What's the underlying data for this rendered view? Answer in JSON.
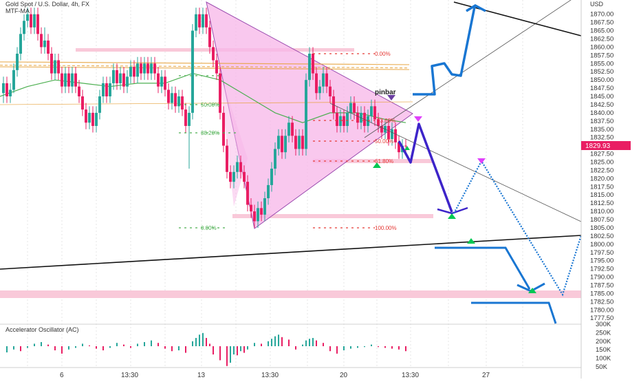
{
  "header": {
    "symbol_line": "Gold Spot / U.S. Dollar, 4h, FX",
    "indicator": "MTF-MA"
  },
  "price_axis": {
    "unit": "USD",
    "ticks": [
      "1870.00",
      "1867.50",
      "1865.00",
      "1862.50",
      "1860.00",
      "1857.50",
      "1855.00",
      "1852.50",
      "1850.00",
      "1847.50",
      "1845.00",
      "1842.50",
      "1840.00",
      "1837.50",
      "1835.00",
      "1832.50",
      "1830.00",
      "1827.50",
      "1825.00",
      "1822.50",
      "1820.00",
      "1817.50",
      "1815.00",
      "1812.50",
      "1810.00",
      "1807.50",
      "1805.00",
      "1802.50",
      "1800.00",
      "1797.50",
      "1795.00",
      "1792.50",
      "1790.00",
      "1787.50",
      "1785.00",
      "1782.50",
      "1780.00",
      "1777.50"
    ],
    "current_price": "1829.93",
    "current_color": "#e91e63"
  },
  "oscillator": {
    "title": "Accelerator Oscillator (AC)",
    "ticks": [
      "300K",
      "250K",
      "200K",
      "150K",
      "100K",
      "50K"
    ]
  },
  "time_axis": {
    "labels": [
      "6",
      "13:30",
      "13",
      "13:30",
      "20",
      "13:30",
      "27"
    ]
  },
  "annotations": {
    "pinbar": "pinbar",
    "fib_left": [
      "50.00%",
      "38.20%",
      "0.00%"
    ],
    "fib_right": [
      "0.00%",
      "23.60%",
      "50.00%",
      "61.80%",
      "100.00%"
    ]
  },
  "colors": {
    "bull": "#26a69a",
    "bear": "#e91e63",
    "triangle_fill": "#f7b5e8",
    "projection_primary": "#1976d2",
    "projection_alt": "#3d24c9",
    "zone": "#f9c9d9",
    "moving_average": "#4caf50",
    "level_line": "#e6a23c"
  },
  "chart_data": {
    "type": "candlestick",
    "y_range": [
      1776.5,
      1873.5
    ],
    "x_range": [
      0,
      845
    ],
    "candles": [
      [
        5,
        1846,
        1849,
        1843,
        1851
      ],
      [
        10,
        1849,
        1845,
        1843,
        1851
      ],
      [
        15,
        1845,
        1847,
        1843,
        1849
      ],
      [
        20,
        1847,
        1853,
        1846,
        1855
      ],
      [
        25,
        1853,
        1858,
        1851,
        1860
      ],
      [
        30,
        1858,
        1864,
        1856,
        1866
      ],
      [
        35,
        1864,
        1868,
        1862,
        1870
      ],
      [
        40,
        1868,
        1870,
        1866,
        1872
      ],
      [
        45,
        1870,
        1866,
        1864,
        1872
      ],
      [
        50,
        1866,
        1870,
        1864,
        1872
      ],
      [
        55,
        1870,
        1864,
        1862,
        1872
      ],
      [
        60,
        1864,
        1860,
        1858,
        1866
      ],
      [
        65,
        1860,
        1862,
        1858,
        1866
      ],
      [
        70,
        1862,
        1858,
        1856,
        1864
      ],
      [
        75,
        1858,
        1852,
        1850,
        1860
      ],
      [
        80,
        1852,
        1856,
        1850,
        1858
      ],
      [
        85,
        1856,
        1852,
        1850,
        1858
      ],
      [
        90,
        1852,
        1848,
        1846,
        1854
      ],
      [
        95,
        1848,
        1852,
        1846,
        1854
      ],
      [
        100,
        1852,
        1848,
        1846,
        1854
      ],
      [
        105,
        1848,
        1852,
        1846,
        1854
      ],
      [
        110,
        1852,
        1848,
        1846,
        1854
      ],
      [
        115,
        1848,
        1845,
        1843,
        1850
      ],
      [
        120,
        1845,
        1841,
        1839,
        1847
      ],
      [
        125,
        1841,
        1837,
        1835,
        1843
      ],
      [
        130,
        1837,
        1840,
        1835,
        1842
      ],
      [
        135,
        1840,
        1836,
        1834,
        1842
      ],
      [
        140,
        1836,
        1840,
        1834,
        1842
      ],
      [
        145,
        1840,
        1845,
        1838,
        1847
      ],
      [
        150,
        1845,
        1849,
        1843,
        1851
      ],
      [
        155,
        1849,
        1845,
        1843,
        1851
      ],
      [
        160,
        1845,
        1849,
        1843,
        1851
      ],
      [
        165,
        1849,
        1853,
        1847,
        1855
      ],
      [
        170,
        1853,
        1849,
        1847,
        1855
      ],
      [
        175,
        1849,
        1852,
        1847,
        1854
      ],
      [
        180,
        1852,
        1848,
        1846,
        1854
      ],
      [
        185,
        1848,
        1851,
        1846,
        1853
      ],
      [
        190,
        1851,
        1854,
        1849,
        1856
      ],
      [
        195,
        1854,
        1851,
        1849,
        1856
      ],
      [
        200,
        1851,
        1855,
        1849,
        1857
      ],
      [
        205,
        1855,
        1852,
        1850,
        1857
      ],
      [
        210,
        1852,
        1855,
        1850,
        1857
      ],
      [
        215,
        1855,
        1852,
        1850,
        1857
      ],
      [
        220,
        1852,
        1855,
        1850,
        1857
      ],
      [
        225,
        1855,
        1852,
        1850,
        1857
      ],
      [
        230,
        1852,
        1848,
        1846,
        1854
      ],
      [
        235,
        1848,
        1851,
        1846,
        1853
      ],
      [
        240,
        1851,
        1847,
        1845,
        1853
      ],
      [
        245,
        1847,
        1843,
        1841,
        1849
      ],
      [
        250,
        1843,
        1846,
        1841,
        1848
      ],
      [
        255,
        1846,
        1842,
        1840,
        1848
      ],
      [
        260,
        1842,
        1845,
        1840,
        1847
      ],
      [
        265,
        1845,
        1841,
        1839,
        1847
      ],
      [
        270,
        1841,
        1836,
        1834,
        1843
      ],
      [
        275,
        1836,
        1840,
        1823,
        1842
      ],
      [
        280,
        1840,
        1865,
        1838,
        1867
      ],
      [
        285,
        1865,
        1870,
        1863,
        1872
      ],
      [
        290,
        1870,
        1866,
        1864,
        1872
      ],
      [
        295,
        1866,
        1870,
        1864,
        1872
      ],
      [
        300,
        1870,
        1866,
        1864,
        1872
      ],
      [
        305,
        1866,
        1860,
        1858,
        1868
      ],
      [
        310,
        1860,
        1856,
        1854,
        1862
      ],
      [
        315,
        1856,
        1852,
        1850,
        1858
      ],
      [
        320,
        1852,
        1840,
        1838,
        1854
      ],
      [
        325,
        1840,
        1830,
        1828,
        1842
      ],
      [
        330,
        1830,
        1822,
        1820,
        1832
      ],
      [
        335,
        1822,
        1819,
        1817,
        1824
      ],
      [
        340,
        1819,
        1822,
        1817,
        1824
      ],
      [
        345,
        1822,
        1825,
        1820,
        1827
      ],
      [
        350,
        1825,
        1822,
        1820,
        1827
      ],
      [
        355,
        1822,
        1819,
        1817,
        1824
      ],
      [
        360,
        1819,
        1812,
        1810,
        1821
      ],
      [
        365,
        1812,
        1810,
        1808,
        1814
      ],
      [
        370,
        1810,
        1807,
        1805,
        1812
      ],
      [
        375,
        1807,
        1811,
        1805,
        1813
      ],
      [
        380,
        1811,
        1809,
        1807,
        1813
      ],
      [
        385,
        1809,
        1814,
        1807,
        1816
      ],
      [
        390,
        1814,
        1818,
        1812,
        1820
      ],
      [
        395,
        1818,
        1823,
        1816,
        1825
      ],
      [
        400,
        1823,
        1829,
        1821,
        1831
      ],
      [
        405,
        1829,
        1833,
        1827,
        1835
      ],
      [
        410,
        1833,
        1828,
        1826,
        1835
      ],
      [
        415,
        1828,
        1833,
        1826,
        1835
      ],
      [
        420,
        1833,
        1837,
        1831,
        1839
      ],
      [
        425,
        1837,
        1833,
        1831,
        1839
      ],
      [
        430,
        1833,
        1829,
        1827,
        1835
      ],
      [
        435,
        1829,
        1833,
        1827,
        1835
      ],
      [
        440,
        1833,
        1829,
        1827,
        1835
      ],
      [
        445,
        1829,
        1850,
        1827,
        1852
      ],
      [
        450,
        1850,
        1858,
        1848,
        1860
      ],
      [
        455,
        1858,
        1852,
        1850,
        1860
      ],
      [
        460,
        1852,
        1846,
        1844,
        1854
      ],
      [
        465,
        1846,
        1848,
        1844,
        1850
      ],
      [
        470,
        1848,
        1852,
        1846,
        1854
      ],
      [
        475,
        1852,
        1848,
        1846,
        1854
      ],
      [
        480,
        1848,
        1845,
        1843,
        1850
      ],
      [
        485,
        1845,
        1840,
        1838,
        1847
      ],
      [
        490,
        1840,
        1836,
        1834,
        1842
      ],
      [
        495,
        1836,
        1839,
        1834,
        1841
      ],
      [
        500,
        1839,
        1836,
        1834,
        1841
      ],
      [
        505,
        1836,
        1840,
        1834,
        1842
      ],
      [
        510,
        1840,
        1843,
        1838,
        1845
      ],
      [
        515,
        1843,
        1840,
        1838,
        1845
      ],
      [
        520,
        1840,
        1837,
        1835,
        1842
      ],
      [
        525,
        1837,
        1840,
        1835,
        1842
      ],
      [
        530,
        1840,
        1836,
        1834,
        1842
      ],
      [
        535,
        1836,
        1839,
        1834,
        1841
      ],
      [
        540,
        1839,
        1842,
        1837,
        1844
      ],
      [
        545,
        1842,
        1838,
        1836,
        1844
      ],
      [
        550,
        1838,
        1836,
        1834,
        1840
      ],
      [
        555,
        1836,
        1834,
        1832,
        1838
      ],
      [
        560,
        1834,
        1836,
        1832,
        1838
      ],
      [
        565,
        1836,
        1832,
        1830,
        1838
      ],
      [
        570,
        1832,
        1835,
        1830,
        1837
      ],
      [
        575,
        1835,
        1831,
        1829,
        1837
      ],
      [
        580,
        1831,
        1828,
        1826,
        1833
      ],
      [
        585,
        1828,
        1830,
        1826,
        1832
      ],
      [
        590,
        1830,
        1829.9,
        1828,
        1832
      ]
    ],
    "ma": [
      [
        0,
        1845
      ],
      [
        40,
        1848
      ],
      [
        80,
        1850
      ],
      [
        120,
        1849
      ],
      [
        160,
        1848
      ],
      [
        200,
        1849
      ],
      [
        240,
        1849
      ],
      [
        280,
        1852
      ],
      [
        320,
        1850
      ],
      [
        360,
        1845
      ],
      [
        400,
        1840
      ],
      [
        440,
        1837
      ],
      [
        480,
        1840
      ],
      [
        520,
        1840
      ],
      [
        560,
        1838
      ],
      [
        590,
        1837
      ]
    ],
    "level_lines": [
      1855.5,
      1854.5,
      1854,
      1842.5
    ],
    "oscillator_bars": [
      [
        10,
        -15
      ],
      [
        20,
        -8
      ],
      [
        30,
        -12
      ],
      [
        40,
        -4
      ],
      [
        50,
        6
      ],
      [
        60,
        10
      ],
      [
        70,
        4
      ],
      [
        80,
        -10
      ],
      [
        90,
        -18
      ],
      [
        100,
        -8
      ],
      [
        110,
        -4
      ],
      [
        120,
        6
      ],
      [
        130,
        2
      ],
      [
        140,
        -6
      ],
      [
        150,
        -10
      ],
      [
        160,
        -4
      ],
      [
        170,
        8
      ],
      [
        180,
        4
      ],
      [
        190,
        -4
      ],
      [
        200,
        6
      ],
      [
        210,
        10
      ],
      [
        220,
        14
      ],
      [
        230,
        8
      ],
      [
        240,
        -6
      ],
      [
        250,
        -12
      ],
      [
        260,
        -10
      ],
      [
        270,
        -16
      ],
      [
        280,
        12
      ],
      [
        285,
        20
      ],
      [
        290,
        28
      ],
      [
        295,
        32
      ],
      [
        300,
        20
      ],
      [
        305,
        6
      ],
      [
        310,
        -20
      ],
      [
        320,
        -34
      ],
      [
        330,
        -48
      ],
      [
        335,
        -40
      ],
      [
        340,
        -20
      ],
      [
        345,
        -22
      ],
      [
        350,
        -12
      ],
      [
        355,
        -16
      ],
      [
        360,
        -8
      ],
      [
        370,
        8
      ],
      [
        380,
        6
      ],
      [
        390,
        12
      ],
      [
        395,
        18
      ],
      [
        400,
        24
      ],
      [
        405,
        28
      ],
      [
        410,
        22
      ],
      [
        420,
        16
      ],
      [
        430,
        -8
      ],
      [
        440,
        4
      ],
      [
        445,
        14
      ],
      [
        450,
        18
      ],
      [
        455,
        20
      ],
      [
        460,
        14
      ],
      [
        470,
        8
      ],
      [
        480,
        -12
      ],
      [
        490,
        -18
      ],
      [
        500,
        -10
      ],
      [
        510,
        -6
      ],
      [
        520,
        -4
      ],
      [
        530,
        -2
      ],
      [
        540,
        4
      ],
      [
        550,
        -2
      ],
      [
        560,
        -4
      ],
      [
        570,
        -6
      ],
      [
        580,
        -8
      ],
      [
        590,
        -12
      ]
    ]
  }
}
